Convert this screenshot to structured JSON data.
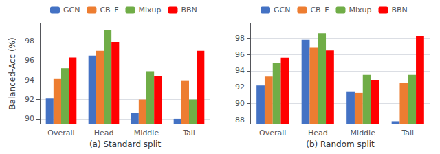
{
  "chart_data": [
    {
      "type": "bar",
      "xlabel": "(a) Standard split",
      "ylabel": "Balanced-Acc (%)",
      "categories": [
        "Overall",
        "Head",
        "Middle",
        "Tail"
      ],
      "series": [
        {
          "name": "GCN",
          "color": "#4472C4",
          "values": [
            92.1,
            96.5,
            90.6,
            90.0
          ]
        },
        {
          "name": "CB_F",
          "color": "#ED7D31",
          "values": [
            94.1,
            97.0,
            92.0,
            93.9
          ]
        },
        {
          "name": "Mixup",
          "color": "#70AD47",
          "values": [
            95.2,
            99.1,
            94.9,
            92.0
          ]
        },
        {
          "name": "BBN",
          "color": "#FF0000",
          "values": [
            96.3,
            97.9,
            94.4,
            97.0
          ]
        }
      ],
      "ylim": [
        89.5,
        99.8
      ],
      "yticks": [
        90,
        92,
        94,
        96,
        98
      ],
      "grid": true,
      "legend": "top"
    },
    {
      "type": "bar",
      "xlabel": "(b) Random split",
      "categories": [
        "Overall",
        "Head",
        "Middle",
        "Tail"
      ],
      "series": [
        {
          "name": "GCN",
          "color": "#4472C4",
          "values": [
            92.2,
            97.8,
            91.4,
            87.8
          ]
        },
        {
          "name": "CB_F",
          "color": "#ED7D31",
          "values": [
            93.3,
            96.8,
            91.3,
            92.5
          ]
        },
        {
          "name": "Mixup",
          "color": "#70AD47",
          "values": [
            95.0,
            98.6,
            93.5,
            93.5
          ]
        },
        {
          "name": "BBN",
          "color": "#FF0000",
          "values": [
            95.6,
            96.5,
            92.9,
            98.2
          ]
        }
      ],
      "ylim": [
        87.5,
        99.8
      ],
      "yticks": [
        88,
        90,
        92,
        94,
        96,
        98
      ],
      "grid": true,
      "legend": "top"
    }
  ]
}
